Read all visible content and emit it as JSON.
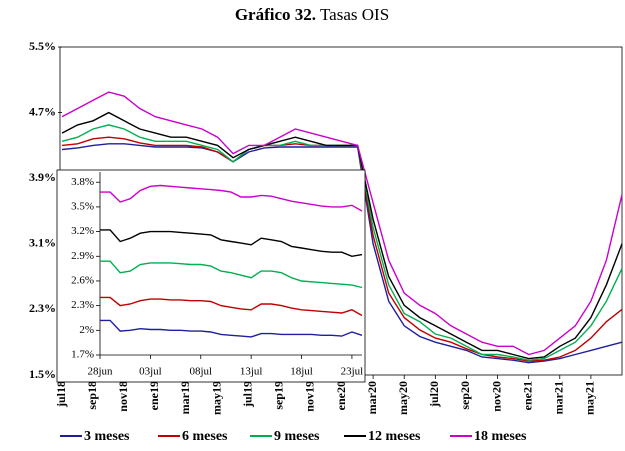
{
  "chart_data": [
    {
      "type": "line",
      "title_label": "Gráfico 32.",
      "title": "Tasas OIS",
      "categories": [
        "jul18",
        null,
        "sep18",
        null,
        "nov18",
        null,
        "ene19",
        null,
        "mar19",
        null,
        "may19",
        null,
        "jul19",
        null,
        "sep19",
        null,
        "nov19",
        null,
        "ene20",
        null,
        "mar20",
        null,
        "may20",
        null,
        "jul20",
        null,
        "sep20",
        null,
        "nov20",
        null,
        "ene21",
        null,
        "mar21",
        null,
        "may21",
        null,
        null
      ],
      "ylim": [
        1.5,
        5.5
      ],
      "yticks": [
        {
          "value": 1.5,
          "label": "1.5%"
        },
        {
          "value": 2.3,
          "label": "2.3%"
        },
        {
          "value": 3.1,
          "label": "3.1%"
        },
        {
          "value": 3.9,
          "label": "3.9%"
        },
        {
          "value": 4.7,
          "label": "4.7%"
        },
        {
          "value": 5.5,
          "label": "5.5%"
        }
      ],
      "legend": "bottom",
      "series": [
        {
          "name": "3 meses",
          "color": "#1f1f9e",
          "values": [
            4.25,
            4.27,
            4.3,
            4.32,
            4.32,
            4.3,
            4.28,
            4.28,
            4.28,
            4.27,
            4.22,
            4.1,
            4.22,
            4.27,
            4.28,
            4.28,
            4.28,
            4.28,
            4.28,
            4.28,
            3.1,
            2.4,
            2.1,
            1.97,
            1.9,
            1.85,
            1.8,
            1.72,
            1.7,
            1.68,
            1.65,
            1.67,
            1.7,
            1.75,
            1.8,
            1.85,
            1.9
          ]
        },
        {
          "name": "6 meses",
          "color": "#c00000",
          "values": [
            4.3,
            4.32,
            4.38,
            4.4,
            4.38,
            4.33,
            4.3,
            4.3,
            4.3,
            4.28,
            4.22,
            4.1,
            4.25,
            4.3,
            4.3,
            4.32,
            4.3,
            4.3,
            4.3,
            4.3,
            3.2,
            2.5,
            2.2,
            2.05,
            1.95,
            1.9,
            1.82,
            1.75,
            1.72,
            1.7,
            1.67,
            1.68,
            1.72,
            1.8,
            1.95,
            2.15,
            2.3
          ]
        },
        {
          "name": "9 meses",
          "color": "#00b050",
          "values": [
            4.35,
            4.4,
            4.5,
            4.55,
            4.5,
            4.4,
            4.35,
            4.35,
            4.35,
            4.3,
            4.25,
            4.1,
            4.25,
            4.3,
            4.3,
            4.35,
            4.3,
            4.3,
            4.3,
            4.3,
            3.3,
            2.6,
            2.25,
            2.15,
            2.0,
            1.95,
            1.85,
            1.75,
            1.75,
            1.72,
            1.68,
            1.7,
            1.8,
            1.9,
            2.1,
            2.4,
            2.8
          ]
        },
        {
          "name": "12 meses",
          "color": "#000000",
          "values": [
            4.45,
            4.55,
            4.6,
            4.7,
            4.6,
            4.5,
            4.45,
            4.4,
            4.4,
            4.35,
            4.3,
            4.15,
            4.25,
            4.3,
            4.35,
            4.4,
            4.35,
            4.3,
            4.3,
            4.3,
            3.4,
            2.7,
            2.35,
            2.2,
            2.1,
            2.0,
            1.9,
            1.8,
            1.8,
            1.75,
            1.7,
            1.72,
            1.85,
            1.95,
            2.2,
            2.6,
            3.1
          ]
        },
        {
          "name": "18 meses",
          "color": "#cc00cc",
          "values": [
            4.65,
            4.75,
            4.85,
            4.95,
            4.9,
            4.75,
            4.65,
            4.6,
            4.55,
            4.5,
            4.4,
            4.2,
            4.3,
            4.3,
            4.4,
            4.5,
            4.45,
            4.4,
            4.35,
            4.3,
            3.6,
            2.9,
            2.5,
            2.35,
            2.25,
            2.1,
            2.0,
            1.9,
            1.85,
            1.85,
            1.75,
            1.8,
            1.95,
            2.1,
            2.4,
            2.9,
            3.7
          ]
        }
      ]
    },
    {
      "type": "line",
      "categories": [
        "28jun",
        null,
        null,
        null,
        null,
        "03jul",
        null,
        null,
        null,
        null,
        "08jul",
        null,
        null,
        null,
        null,
        "13jul",
        null,
        null,
        null,
        null,
        "18jul",
        null,
        null,
        null,
        null,
        "23jul",
        null
      ],
      "ylim": [
        1.7,
        3.9
      ],
      "yticks": [
        {
          "value": 1.7,
          "label": "1.7%"
        },
        {
          "value": 2.0,
          "label": "2%"
        },
        {
          "value": 2.3,
          "label": "2.3%"
        },
        {
          "value": 2.6,
          "label": "2.6%"
        },
        {
          "value": 2.9,
          "label": "2.9%"
        },
        {
          "value": 3.2,
          "label": "3.2%"
        },
        {
          "value": 3.5,
          "label": "3.5%"
        },
        {
          "value": 3.8,
          "label": "3.8%"
        }
      ],
      "series": [
        {
          "color": "#1f1f9e",
          "values": [
            2.12,
            2.12,
            1.99,
            2.0,
            2.02,
            2.01,
            2.01,
            2.0,
            2.0,
            1.99,
            1.99,
            1.98,
            1.95,
            1.94,
            1.93,
            1.92,
            1.96,
            1.96,
            1.95,
            1.95,
            1.95,
            1.95,
            1.94,
            1.94,
            1.93,
            1.98,
            1.94
          ]
        },
        {
          "color": "#c00000",
          "values": [
            2.4,
            2.4,
            2.3,
            2.32,
            2.36,
            2.38,
            2.38,
            2.37,
            2.37,
            2.36,
            2.36,
            2.35,
            2.3,
            2.28,
            2.26,
            2.25,
            2.32,
            2.32,
            2.3,
            2.27,
            2.25,
            2.24,
            2.23,
            2.22,
            2.21,
            2.25,
            2.18
          ]
        },
        {
          "color": "#00b050",
          "values": [
            2.84,
            2.84,
            2.7,
            2.72,
            2.8,
            2.82,
            2.82,
            2.82,
            2.81,
            2.8,
            2.8,
            2.78,
            2.72,
            2.7,
            2.67,
            2.64,
            2.72,
            2.72,
            2.7,
            2.64,
            2.6,
            2.59,
            2.58,
            2.57,
            2.56,
            2.55,
            2.52
          ]
        },
        {
          "color": "#000000",
          "values": [
            3.22,
            3.22,
            3.08,
            3.12,
            3.18,
            3.2,
            3.2,
            3.2,
            3.19,
            3.18,
            3.17,
            3.16,
            3.1,
            3.08,
            3.06,
            3.04,
            3.12,
            3.1,
            3.08,
            3.02,
            3.0,
            2.98,
            2.96,
            2.95,
            2.95,
            2.9,
            2.92
          ]
        },
        {
          "color": "#cc00cc",
          "values": [
            3.68,
            3.68,
            3.56,
            3.6,
            3.7,
            3.75,
            3.76,
            3.75,
            3.74,
            3.73,
            3.72,
            3.71,
            3.7,
            3.68,
            3.62,
            3.62,
            3.64,
            3.63,
            3.6,
            3.57,
            3.55,
            3.53,
            3.51,
            3.5,
            3.5,
            3.52,
            3.45
          ]
        }
      ]
    }
  ]
}
